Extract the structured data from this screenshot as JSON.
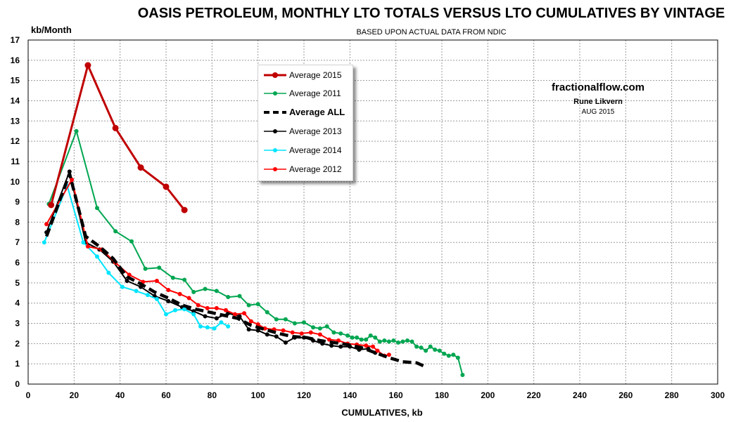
{
  "title": "OASIS PETROLEUM, MONTHLY LTO TOTALS VERSUS LTO CUMULATIVES BY VINTAGE",
  "subtitle": "BASED UPON ACTUAL DATA FROM NDIC",
  "annotations": {
    "site": "fractionalflow.com",
    "author": "Rune Likvern",
    "date": "AUG 2015"
  },
  "chart_data": {
    "type": "line",
    "title": "OASIS PETROLEUM, MONTHLY LTO TOTALS VERSUS LTO CUMULATIVES BY VINTAGE",
    "subtitle": "BASED UPON ACTUAL DATA FROM NDIC",
    "xlabel": "CUMULATIVES, kb",
    "ylabel": "kb/Month",
    "xlim": [
      0,
      300
    ],
    "ylim": [
      0,
      17
    ],
    "xticks": [
      "0",
      "20",
      "40",
      "60",
      "80",
      "100",
      "120",
      "140",
      "160",
      "180",
      "200",
      "220",
      "240",
      "260",
      "280",
      "300"
    ],
    "yticks": [
      "0",
      "1",
      "2",
      "3",
      "4",
      "5",
      "6",
      "7",
      "8",
      "9",
      "10",
      "11",
      "12",
      "13",
      "14",
      "15",
      "16",
      "17"
    ],
    "grid": true,
    "legend_position": "upper-center",
    "series": [
      {
        "name": "Average 2011",
        "color": "#00a651",
        "marker": "circle",
        "points": [
          [
            9,
            8.9
          ],
          [
            21,
            12.5
          ],
          [
            30,
            8.7
          ],
          [
            38,
            7.55
          ],
          [
            45,
            7.05
          ],
          [
            51,
            5.7
          ],
          [
            57,
            5.75
          ],
          [
            63,
            5.25
          ],
          [
            68,
            5.15
          ],
          [
            72,
            4.55
          ],
          [
            77,
            4.7
          ],
          [
            82,
            4.6
          ],
          [
            87,
            4.3
          ],
          [
            92,
            4.35
          ],
          [
            96,
            3.9
          ],
          [
            100,
            3.95
          ],
          [
            104,
            3.55
          ],
          [
            108,
            3.2
          ],
          [
            112,
            3.2
          ],
          [
            116,
            3.0
          ],
          [
            120,
            3.05
          ],
          [
            124,
            2.8
          ],
          [
            127,
            2.75
          ],
          [
            130,
            2.85
          ],
          [
            133,
            2.55
          ],
          [
            136,
            2.5
          ],
          [
            139,
            2.4
          ],
          [
            141,
            2.3
          ],
          [
            143,
            2.3
          ],
          [
            145,
            2.2
          ],
          [
            147,
            2.2
          ],
          [
            149,
            2.4
          ],
          [
            151,
            2.3
          ],
          [
            153,
            2.1
          ],
          [
            155,
            2.15
          ],
          [
            157,
            2.1
          ],
          [
            159,
            2.15
          ],
          [
            161,
            2.05
          ],
          [
            163,
            2.1
          ],
          [
            165,
            2.15
          ],
          [
            167,
            2.1
          ],
          [
            169,
            1.85
          ],
          [
            171,
            1.8
          ],
          [
            173,
            1.65
          ],
          [
            175,
            1.85
          ],
          [
            177,
            1.7
          ],
          [
            179,
            1.65
          ],
          [
            181,
            1.5
          ],
          [
            183,
            1.4
          ],
          [
            185,
            1.45
          ],
          [
            187,
            1.3
          ],
          [
            189,
            0.45
          ]
        ]
      },
      {
        "name": "Average 2013",
        "color": "#000000",
        "marker": "circle",
        "points": [
          [
            8,
            7.5
          ],
          [
            18,
            10.5
          ],
          [
            25,
            7.0
          ],
          [
            31,
            6.65
          ],
          [
            37,
            6.05
          ],
          [
            43,
            5.1
          ],
          [
            49,
            4.8
          ],
          [
            55,
            4.35
          ],
          [
            61,
            4.1
          ],
          [
            67,
            3.8
          ],
          [
            72,
            3.6
          ],
          [
            77,
            3.35
          ],
          [
            82,
            3.25
          ],
          [
            87,
            3.5
          ],
          [
            92,
            3.35
          ],
          [
            96,
            2.7
          ],
          [
            100,
            2.65
          ],
          [
            104,
            2.45
          ],
          [
            108,
            2.35
          ],
          [
            112,
            2.05
          ],
          [
            116,
            2.3
          ],
          [
            120,
            2.3
          ],
          [
            124,
            2.15
          ],
          [
            128,
            2.0
          ],
          [
            132,
            1.9
          ],
          [
            136,
            1.85
          ],
          [
            140,
            1.85
          ],
          [
            144,
            1.7
          ],
          [
            148,
            1.75
          ],
          [
            151,
            1.55
          ]
        ]
      },
      {
        "name": "Average 2014",
        "color": "#00e5ff",
        "marker": "circle",
        "points": [
          [
            7,
            7.0
          ],
          [
            17,
            9.8
          ],
          [
            24,
            7.0
          ],
          [
            30,
            6.3
          ],
          [
            35,
            5.5
          ],
          [
            41,
            4.8
          ],
          [
            47,
            4.6
          ],
          [
            52,
            4.4
          ],
          [
            56,
            4.2
          ],
          [
            60,
            3.45
          ],
          [
            64,
            3.65
          ],
          [
            68,
            3.7
          ],
          [
            72,
            3.45
          ],
          [
            75,
            2.85
          ],
          [
            78,
            2.8
          ],
          [
            81,
            2.75
          ],
          [
            84,
            3.05
          ],
          [
            87,
            2.85
          ]
        ]
      },
      {
        "name": "Average 2012",
        "color": "#ff0000",
        "marker": "circle",
        "points": [
          [
            8,
            7.9
          ],
          [
            19,
            10.1
          ],
          [
            26,
            6.8
          ],
          [
            32,
            6.65
          ],
          [
            38,
            6.0
          ],
          [
            44,
            5.4
          ],
          [
            50,
            5.05
          ],
          [
            56,
            5.1
          ],
          [
            61,
            4.65
          ],
          [
            66,
            4.45
          ],
          [
            70,
            4.25
          ],
          [
            74,
            3.9
          ],
          [
            78,
            3.75
          ],
          [
            82,
            3.75
          ],
          [
            86,
            3.65
          ],
          [
            90,
            3.45
          ],
          [
            94,
            3.5
          ],
          [
            97,
            3.1
          ],
          [
            100,
            2.95
          ],
          [
            103,
            2.75
          ],
          [
            107,
            2.7
          ],
          [
            111,
            2.65
          ],
          [
            115,
            2.55
          ],
          [
            119,
            2.5
          ],
          [
            123,
            2.55
          ],
          [
            127,
            2.45
          ],
          [
            131,
            2.2
          ],
          [
            135,
            2.15
          ],
          [
            139,
            2.0
          ],
          [
            143,
            1.95
          ],
          [
            147,
            1.9
          ],
          [
            150,
            1.85
          ],
          [
            152,
            1.65
          ],
          [
            155,
            1.4
          ],
          [
            157,
            1.45
          ]
        ]
      },
      {
        "name": "Average ALL",
        "color": "#000000",
        "marker": "none",
        "dashed": true,
        "points": [
          [
            8,
            7.3
          ],
          [
            18,
            10.4
          ],
          [
            25,
            7.3
          ],
          [
            31,
            6.8
          ],
          [
            37,
            6.2
          ],
          [
            43,
            5.3
          ],
          [
            49,
            4.95
          ],
          [
            55,
            4.55
          ],
          [
            61,
            4.25
          ],
          [
            67,
            3.9
          ],
          [
            73,
            3.7
          ],
          [
            79,
            3.55
          ],
          [
            85,
            3.4
          ],
          [
            91,
            3.25
          ],
          [
            97,
            2.9
          ],
          [
            103,
            2.7
          ],
          [
            109,
            2.5
          ],
          [
            115,
            2.35
          ],
          [
            121,
            2.3
          ],
          [
            127,
            2.15
          ],
          [
            133,
            2.05
          ],
          [
            139,
            1.95
          ],
          [
            145,
            1.8
          ],
          [
            151,
            1.55
          ],
          [
            157,
            1.3
          ],
          [
            163,
            1.1
          ],
          [
            169,
            1.05
          ],
          [
            173,
            0.85
          ]
        ]
      },
      {
        "name": "Average 2015",
        "color": "#c00000",
        "marker": "circle",
        "points": [
          [
            10,
            8.85
          ],
          [
            26,
            15.75
          ],
          [
            38,
            12.65
          ],
          [
            49,
            10.7
          ],
          [
            60,
            9.75
          ],
          [
            68,
            8.6
          ]
        ]
      }
    ]
  },
  "legend": [
    {
      "label": "Average 2015",
      "color": "#c00000",
      "style": "thick-circle"
    },
    {
      "label": "Average 2011",
      "color": "#00a651",
      "style": "circle"
    },
    {
      "label": "Average ALL",
      "color": "#000000",
      "style": "dashed"
    },
    {
      "label": "Average 2013",
      "color": "#000000",
      "style": "circle"
    },
    {
      "label": "Average 2014",
      "color": "#00e5ff",
      "style": "circle"
    },
    {
      "label": "Average 2012",
      "color": "#ff0000",
      "style": "circle"
    }
  ]
}
